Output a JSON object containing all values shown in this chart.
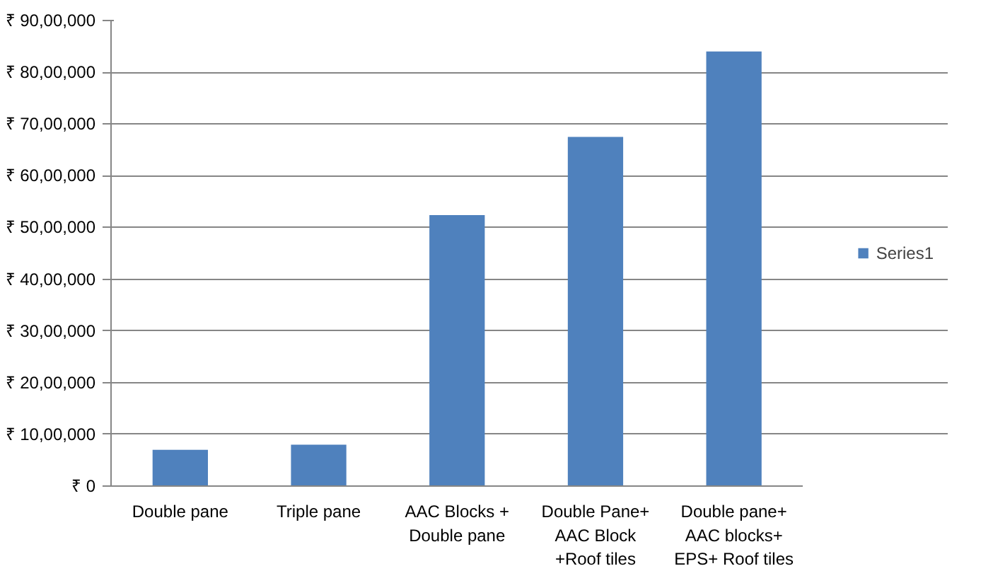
{
  "chart_data": {
    "type": "bar",
    "categories": [
      "Double pane",
      "Triple pane",
      "AAC Blocks +\nDouble pane",
      "Double Pane+\nAAC Block\n+Roof tiles",
      "Double pane+\nAAC blocks+\nEPS+ Roof tiles"
    ],
    "series": [
      {
        "name": "Series1",
        "color": "#4f81bd",
        "values": [
          700000,
          800000,
          5240000,
          6750000,
          8400000
        ]
      }
    ],
    "ylim": [
      0,
      9000000
    ],
    "yticks": [
      {
        "value": 0,
        "label": "₹ 0"
      },
      {
        "value": 1000000,
        "label": "₹ 10,00,000"
      },
      {
        "value": 2000000,
        "label": "₹ 20,00,000"
      },
      {
        "value": 3000000,
        "label": "₹ 30,00,000"
      },
      {
        "value": 4000000,
        "label": "₹ 40,00,000"
      },
      {
        "value": 5000000,
        "label": "₹ 50,00,000"
      },
      {
        "value": 6000000,
        "label": "₹ 60,00,000"
      },
      {
        "value": 7000000,
        "label": "₹ 70,00,000"
      },
      {
        "value": 8000000,
        "label": "₹ 80,00,000"
      },
      {
        "value": 9000000,
        "label": "₹ 90,00,000"
      }
    ],
    "grid": "y",
    "legend": "right"
  }
}
